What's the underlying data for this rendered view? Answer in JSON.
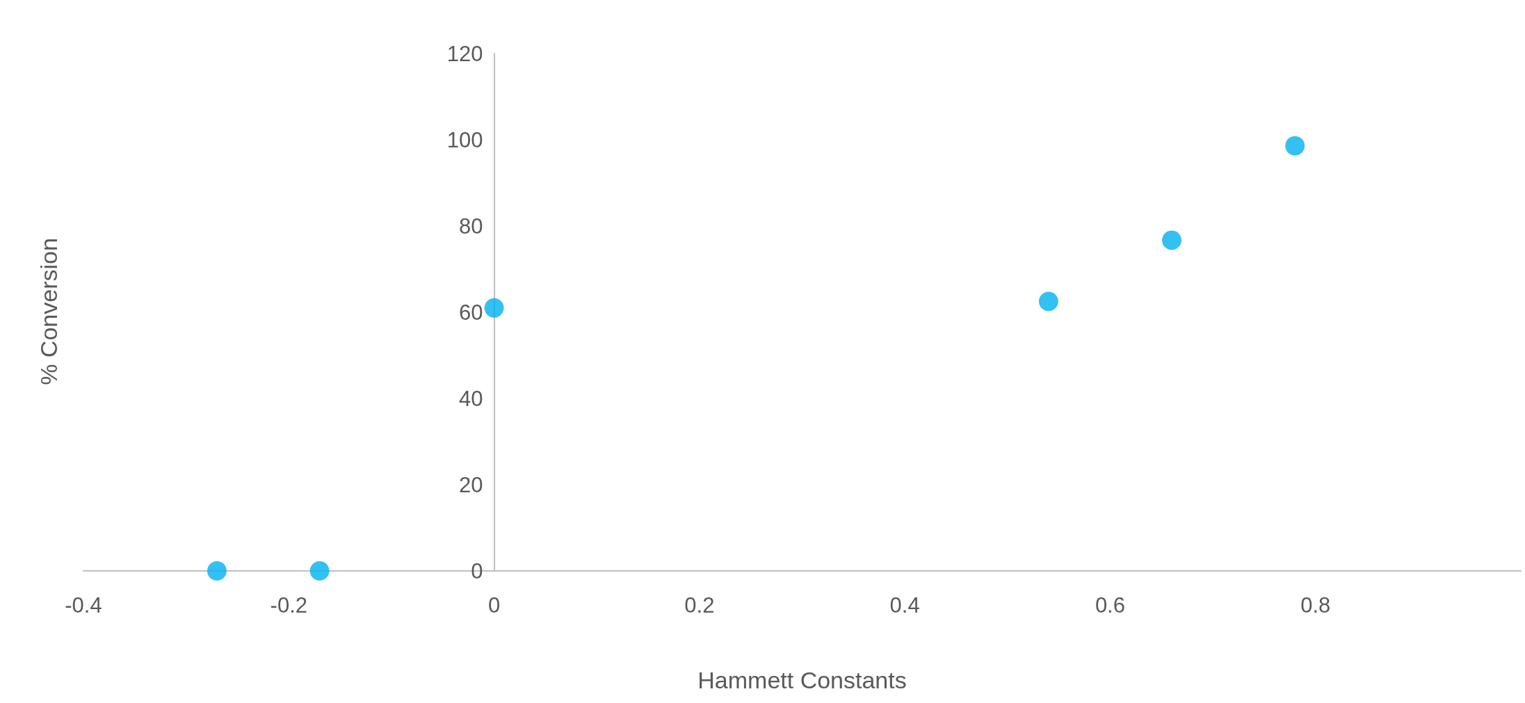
{
  "chart_data": {
    "type": "scatter",
    "xlabel": "Hammett Constants",
    "ylabel": "% Conversion",
    "x": [
      -0.27,
      -0.17,
      0,
      0.54,
      0.66,
      0.78
    ],
    "values": [
      0,
      0,
      61,
      62.5,
      76.7,
      98.6
    ],
    "color": "#00b0f0",
    "marker": "circle",
    "xlim": [
      -0.4,
      1.0
    ],
    "xticks": [
      -0.4,
      -0.2,
      0,
      0.2,
      0.4,
      0.6,
      0.8
    ],
    "ylim": [
      0,
      120
    ],
    "yticks": [
      0,
      20,
      40,
      60,
      80,
      100,
      120
    ],
    "grid": false
  }
}
